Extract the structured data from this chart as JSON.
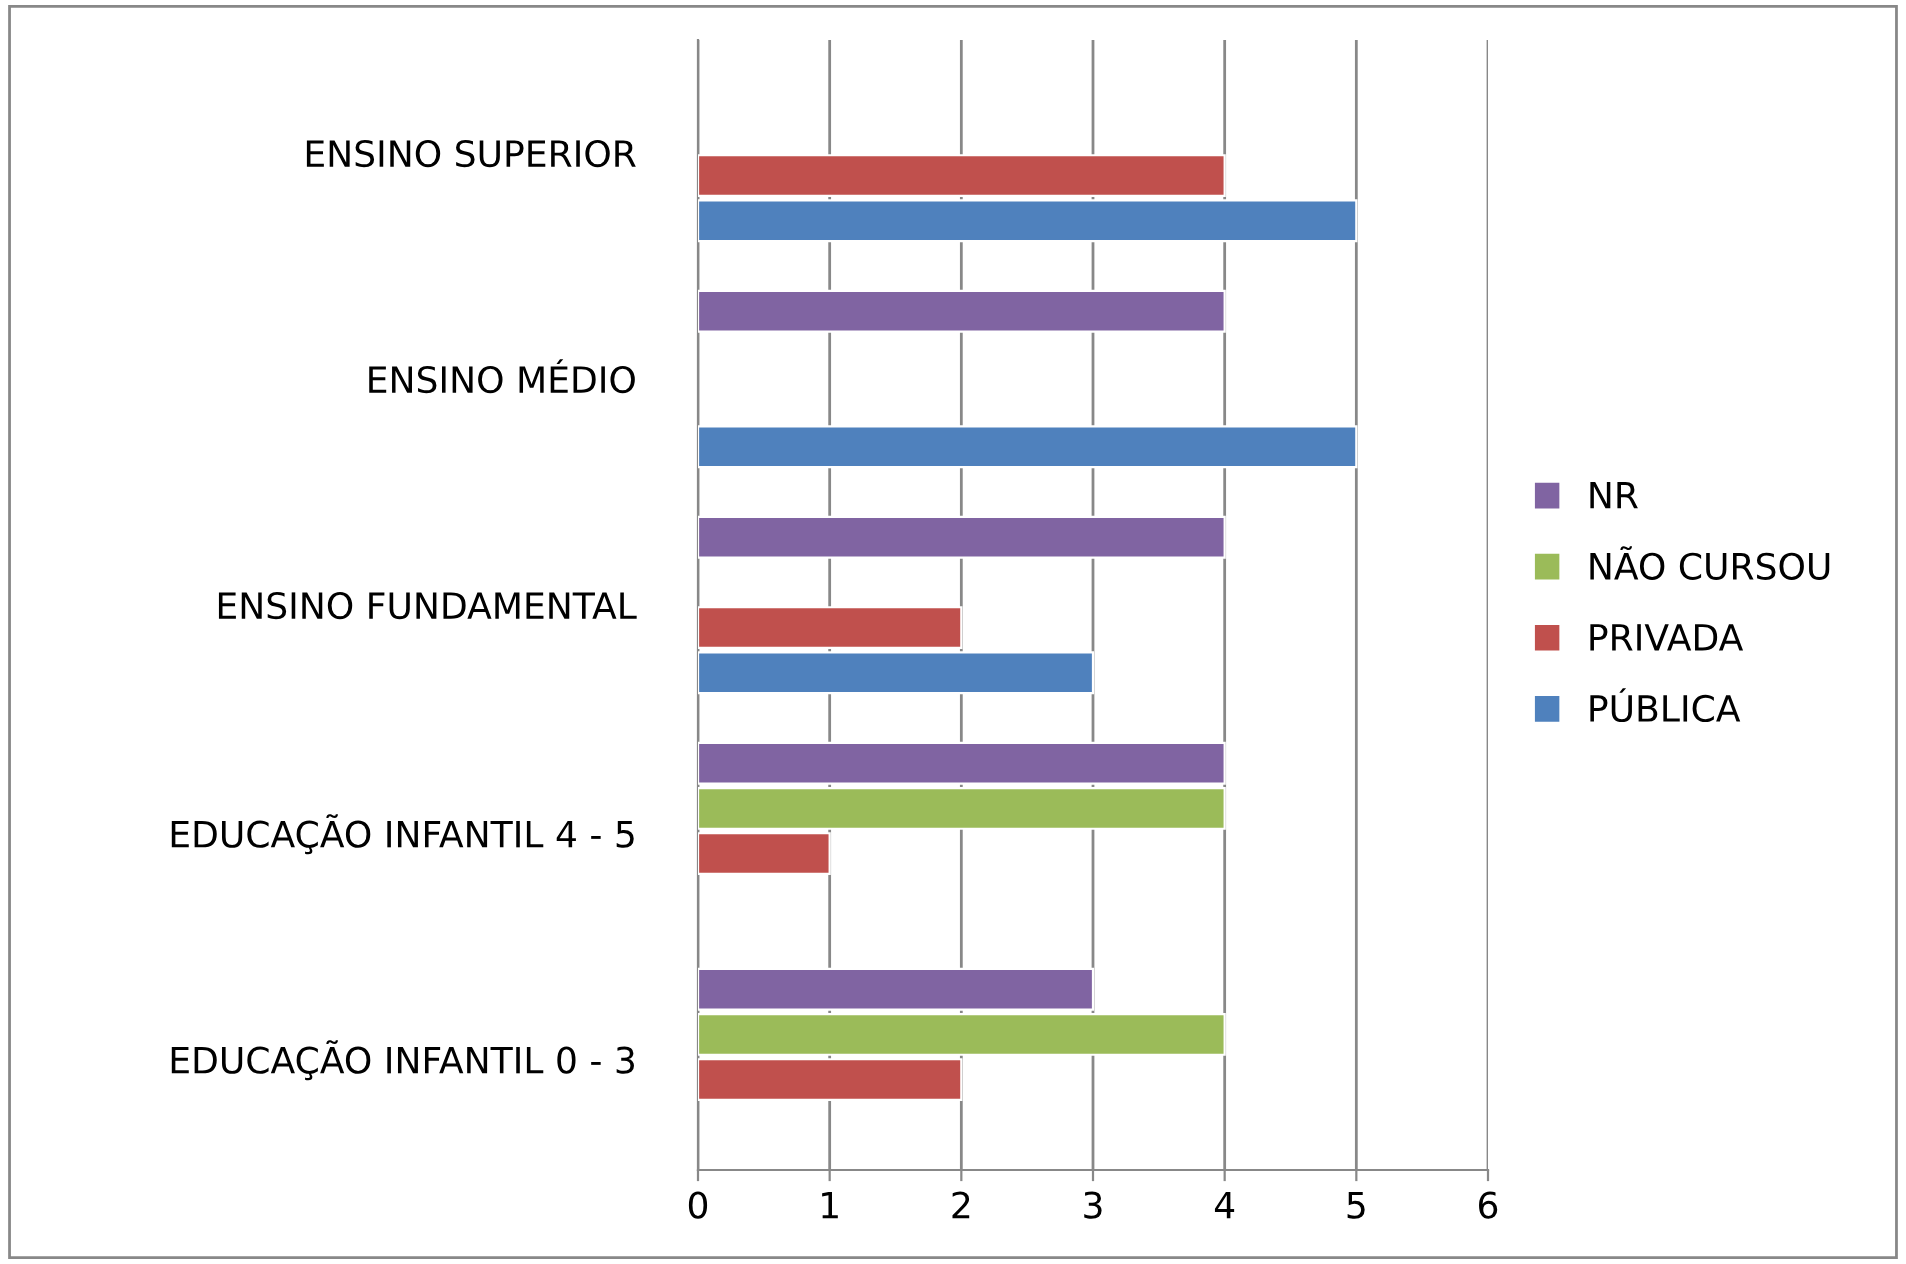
{
  "chart_data": {
    "type": "bar",
    "orientation": "horizontal",
    "categories": [
      "ENSINO SUPERIOR",
      "ENSINO MÉDIO",
      "ENSINO FUNDAMENTAL",
      "EDUCAÇÃO INFANTIL 4 - 5",
      "EDUCAÇÃO INFANTIL 0 - 3"
    ],
    "series": [
      {
        "name": "PÚBLICA",
        "color": "#4f81bd",
        "values": [
          5,
          5,
          3,
          null,
          null
        ]
      },
      {
        "name": "PRIVADA",
        "color": "#c0504d",
        "values": [
          4,
          null,
          2,
          1,
          2
        ]
      },
      {
        "name": "NÃO CURSOU",
        "color": "#9bbb59",
        "values": [
          null,
          null,
          null,
          4,
          4
        ]
      },
      {
        "name": "NR",
        "color": "#8064a2",
        "values": [
          null,
          4,
          4,
          4,
          3
        ]
      }
    ],
    "xlim": [
      0,
      6
    ],
    "xticks": [
      0,
      1,
      2,
      3,
      4,
      5,
      6
    ],
    "grid": "x",
    "legend": "right"
  }
}
